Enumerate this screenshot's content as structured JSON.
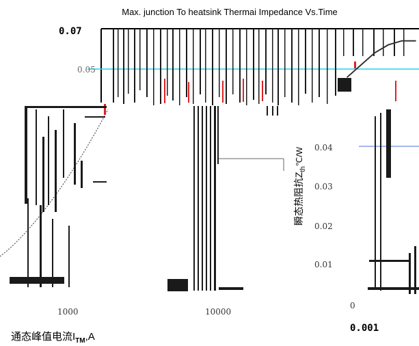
{
  "chart_data": {
    "type": "line",
    "title": "Max. junction To heatsink Thermai Impedance Vs.Time",
    "ylabel": "瞬态热阻抗Z",
    "ylabel_sub": "th",
    "ylabel_tail": "℃/W",
    "xlabel": "通态峰值电流I",
    "xlabel_sub": "TM",
    "xlabel_tail": ",A",
    "y_ticks": [
      "0.07",
      "0.05",
      "0.04",
      "0.03",
      "0.02",
      "0.01",
      "0"
    ],
    "x_ticks": [
      "0.001",
      "1000",
      "10000"
    ],
    "ylim": [
      0,
      0.07
    ],
    "colors": {
      "curve": "#333333",
      "axis": "#000000",
      "cyan_line": "#22d3e6",
      "blue_line": "#4a6fe0",
      "red_marks": "#e02020",
      "bars": "#1a1a1a"
    },
    "series": [
      {
        "values": [
          0.046,
          0.052,
          0.058,
          0.062,
          0.064,
          0.064
        ]
      }
    ]
  }
}
